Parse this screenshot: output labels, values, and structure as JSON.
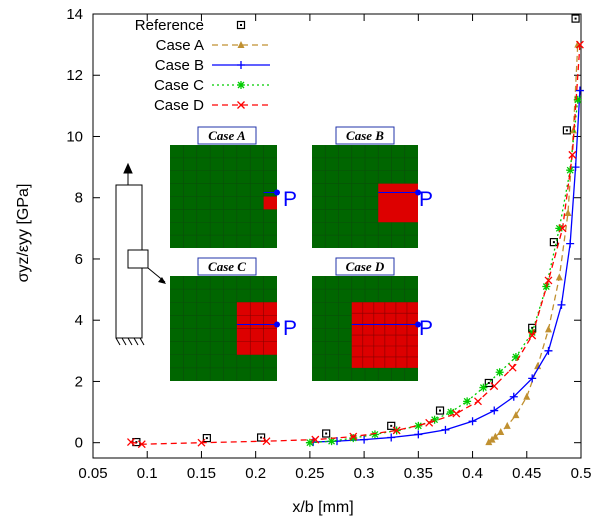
{
  "chart_data": {
    "type": "line",
    "xlabel": "x/b [mm]",
    "ylabel": "σyz/εyy [GPa]",
    "xlim": [
      0.05,
      0.5
    ],
    "ylim": [
      -0.5,
      14
    ],
    "xticks": [
      "0.05",
      "0.1",
      "0.15",
      "0.2",
      "0.25",
      "0.3",
      "0.35",
      "0.4",
      "0.45",
      "0.5"
    ],
    "yticks": [
      "0",
      "2",
      "4",
      "6",
      "8",
      "10",
      "12",
      "14"
    ],
    "grid": false,
    "legend_position": "top-left",
    "series": [
      {
        "name": "Reference",
        "color": "#000000",
        "marker": "box-dot",
        "line": "none",
        "x": [
          0.09,
          0.155,
          0.205,
          0.265,
          0.325,
          0.37,
          0.415,
          0.455,
          0.475,
          0.487,
          0.495
        ],
        "y": [
          0.02,
          0.15,
          0.17,
          0.3,
          0.55,
          1.05,
          1.95,
          3.75,
          6.55,
          10.2,
          13.85
        ]
      },
      {
        "name": "Case A",
        "color": "#c09030",
        "marker": "triangle",
        "line": "dashed",
        "x": [
          0.415,
          0.418,
          0.421,
          0.426,
          0.432,
          0.44,
          0.45,
          0.46,
          0.47,
          0.48,
          0.488,
          0.493,
          0.497
        ],
        "y": [
          0.02,
          0.1,
          0.2,
          0.35,
          0.55,
          0.9,
          1.5,
          2.5,
          3.7,
          5.4,
          7.5,
          10.2,
          13.0
        ]
      },
      {
        "name": "Case B",
        "color": "#0000ff",
        "marker": "plus",
        "line": "solid",
        "x": [
          0.253,
          0.275,
          0.3,
          0.325,
          0.35,
          0.375,
          0.4,
          0.42,
          0.438,
          0.455,
          0.47,
          0.482,
          0.49,
          0.495,
          0.499
        ],
        "y": [
          0.02,
          0.05,
          0.1,
          0.17,
          0.27,
          0.42,
          0.7,
          1.05,
          1.5,
          2.1,
          3.0,
          4.5,
          6.5,
          9.0,
          11.5
        ]
      },
      {
        "name": "Case C",
        "color": "#00cc00",
        "marker": "star",
        "line": "dotted",
        "x": [
          0.25,
          0.27,
          0.29,
          0.31,
          0.33,
          0.35,
          0.365,
          0.38,
          0.395,
          0.41,
          0.425,
          0.44,
          0.455,
          0.468,
          0.48,
          0.49,
          0.497
        ],
        "y": [
          0.0,
          0.05,
          0.15,
          0.27,
          0.4,
          0.55,
          0.75,
          1.0,
          1.35,
          1.8,
          2.3,
          2.8,
          3.6,
          5.1,
          7.0,
          8.9,
          11.2
        ]
      },
      {
        "name": "Case D",
        "color": "#ff0000",
        "marker": "cross",
        "line": "dashed",
        "x": [
          0.085,
          0.095,
          0.15,
          0.21,
          0.255,
          0.29,
          0.33,
          0.36,
          0.385,
          0.405,
          0.42,
          0.437,
          0.455,
          0.47,
          0.483,
          0.492,
          0.499
        ],
        "y": [
          0.02,
          -0.05,
          0.0,
          0.05,
          0.1,
          0.2,
          0.4,
          0.65,
          0.95,
          1.35,
          1.85,
          2.45,
          3.5,
          5.3,
          7.0,
          9.4,
          13.0
        ]
      }
    ]
  },
  "insets": [
    {
      "title": "Case A",
      "point_label": "P",
      "grid": 8
    },
    {
      "title": "Case B",
      "point_label": "P",
      "grid": 8
    },
    {
      "title": "Case C",
      "point_label": "P",
      "grid": 8
    },
    {
      "title": "Case D",
      "point_label": "P",
      "grid": 8
    }
  ],
  "colors": {
    "mesh_green": "#006600",
    "region_red": "#dd0000",
    "point_blue": "#0000ff"
  }
}
